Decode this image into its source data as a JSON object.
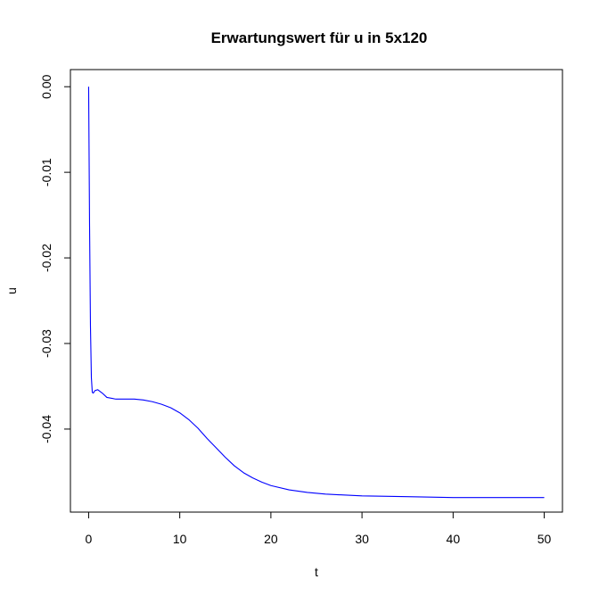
{
  "chart_data": {
    "type": "line",
    "title": "Erwartungswert für u in 5x120",
    "xlabel": "t",
    "ylabel": "u",
    "xlim": [
      -2,
      52
    ],
    "ylim": [
      -0.0497,
      0.002
    ],
    "x_ticks": [
      0,
      10,
      20,
      30,
      40,
      50
    ],
    "x_tick_labels": [
      "0",
      "10",
      "20",
      "30",
      "40",
      "50"
    ],
    "y_ticks": [
      0.0,
      -0.01,
      -0.02,
      -0.03,
      -0.04
    ],
    "y_tick_labels": [
      "0.00",
      "-0.01",
      "-0.02",
      "-0.03",
      "-0.04"
    ],
    "grid": false,
    "series": [
      {
        "color": "#0000ff",
        "x": [
          0,
          0.1,
          0.2,
          0.3,
          0.4,
          0.5,
          0.7,
          1,
          1.5,
          2,
          3,
          4,
          5,
          6,
          7,
          8,
          9,
          10,
          11,
          12,
          13,
          14,
          15,
          16,
          17,
          18,
          19,
          20,
          22,
          24,
          26,
          28,
          30,
          35,
          40,
          45,
          50
        ],
        "y": [
          0.0,
          -0.016,
          -0.028,
          -0.034,
          -0.0357,
          -0.0358,
          -0.0355,
          -0.0354,
          -0.0358,
          -0.0363,
          -0.0365,
          -0.0365,
          -0.0365,
          -0.0366,
          -0.0368,
          -0.0371,
          -0.0375,
          -0.0381,
          -0.0389,
          -0.0399,
          -0.0411,
          -0.0422,
          -0.0433,
          -0.0443,
          -0.0451,
          -0.0457,
          -0.0462,
          -0.0466,
          -0.0471,
          -0.0474,
          -0.0476,
          -0.0477,
          -0.0478,
          -0.0479,
          -0.048,
          -0.048,
          -0.048
        ]
      }
    ]
  }
}
